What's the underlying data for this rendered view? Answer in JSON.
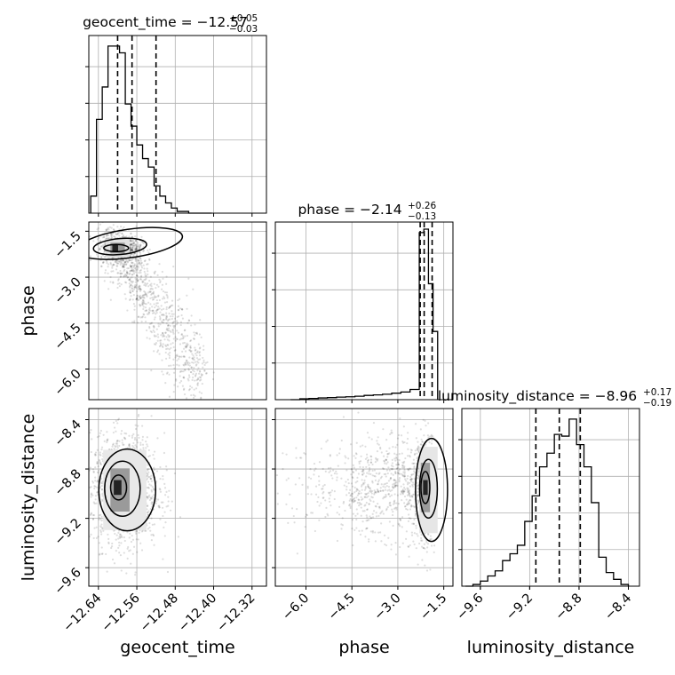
{
  "chart_data": {
    "type": "corner",
    "parameters": [
      "geocent_time",
      "phase",
      "luminosity_distance"
    ],
    "axis_labels": {
      "geocent_time": "geocent_time",
      "phase": "phase",
      "luminosity_distance": "luminosity_distance"
    },
    "titles": [
      {
        "param": "geocent_time",
        "text": "geocent_time = −12.57",
        "sup": "+0.05",
        "sub": "−0.03"
      },
      {
        "param": "phase",
        "text": "phase = −2.14",
        "sup": "+0.26",
        "sub": "−0.13"
      },
      {
        "param": "luminosity_distance",
        "text": "luminosity_distance = −8.96",
        "sup": "+0.17",
        "sub": "−0.19"
      }
    ],
    "ranges": {
      "geocent_time": [
        -12.66,
        -12.29
      ],
      "phase": [
        -7.0,
        -1.2
      ],
      "luminosity_distance": [
        -9.75,
        -8.31
      ]
    },
    "ticks": {
      "geocent_time": {
        "values": [
          -12.64,
          -12.56,
          -12.48,
          -12.4,
          -12.32
        ],
        "labels": [
          "−12.64",
          "−12.56",
          "−12.48",
          "−12.40",
          "−12.32"
        ]
      },
      "phase": {
        "values": [
          -6.0,
          -4.5,
          -3.0,
          -1.5
        ],
        "labels": [
          "−6.0",
          "−4.5",
          "−3.0",
          "−1.5"
        ]
      },
      "luminosity_distance": {
        "values": [
          -9.6,
          -9.2,
          -8.8,
          -8.4
        ],
        "labels": [
          "−9.6",
          "−9.2",
          "−8.8",
          "−8.4"
        ]
      }
    },
    "quantiles": {
      "geocent_time": [
        -12.6,
        -12.57,
        -12.52
      ],
      "phase": [
        -2.27,
        -2.14,
        -1.88
      ],
      "luminosity_distance": [
        -9.15,
        -8.96,
        -8.79
      ]
    },
    "histograms": {
      "geocent_time": {
        "edges": [
          -12.656,
          -12.644,
          -12.632,
          -12.62,
          -12.608,
          -12.596,
          -12.584,
          -12.572,
          -12.56,
          -12.548,
          -12.536,
          -12.524,
          -12.512,
          -12.5,
          -12.488,
          -12.476,
          -12.464,
          -12.452,
          -12.44,
          -12.428,
          -12.416,
          -12.404
        ],
        "counts": [
          0.1,
          0.55,
          0.74,
          0.98,
          0.98,
          0.94,
          0.64,
          0.51,
          0.4,
          0.32,
          0.27,
          0.16,
          0.1,
          0.06,
          0.03,
          0.01,
          0.01,
          0.0,
          0.0,
          0.0,
          0.0
        ]
      },
      "phase": {
        "edges": [
          -6.5,
          -6.2,
          -5.9,
          -5.6,
          -5.3,
          -5.0,
          -4.7,
          -4.4,
          -4.1,
          -3.8,
          -3.5,
          -3.2,
          -2.9,
          -2.6,
          -2.3,
          -2.15,
          -2.0,
          -1.85,
          -1.7
        ],
        "counts": [
          0.0,
          0.005,
          0.007,
          0.01,
          0.012,
          0.015,
          0.017,
          0.02,
          0.025,
          0.028,
          0.032,
          0.038,
          0.045,
          0.06,
          0.98,
          1.0,
          0.68,
          0.4
        ]
      },
      "luminosity_distance": {
        "edges": [
          -9.72,
          -9.66,
          -9.6,
          -9.54,
          -9.48,
          -9.42,
          -9.36,
          -9.3,
          -9.24,
          -9.18,
          -9.12,
          -9.06,
          -9.0,
          -8.94,
          -8.88,
          -8.82,
          -8.76,
          -8.7,
          -8.64,
          -8.58,
          -8.52,
          -8.46,
          -8.4
        ],
        "counts": [
          0.0,
          0.01,
          0.03,
          0.06,
          0.09,
          0.15,
          0.19,
          0.24,
          0.38,
          0.53,
          0.7,
          0.78,
          0.89,
          0.88,
          0.98,
          0.83,
          0.7,
          0.49,
          0.17,
          0.08,
          0.04,
          0.01
        ]
      }
    },
    "scatter_trends": {
      "phase_vs_geocent_time": "negative correlation; dense blob near geocent_time -12.60, phase -2.0, tail toward -12.42, -6.8",
      "luminosity_distance_vs_geocent_time": "dense blob centred near -12.59, -8.97",
      "luminosity_distance_vs_phase": "diffuse cloud across phase -7 to -1.7, dense blob near phase -2.1, luminosity_distance -8.97"
    }
  }
}
